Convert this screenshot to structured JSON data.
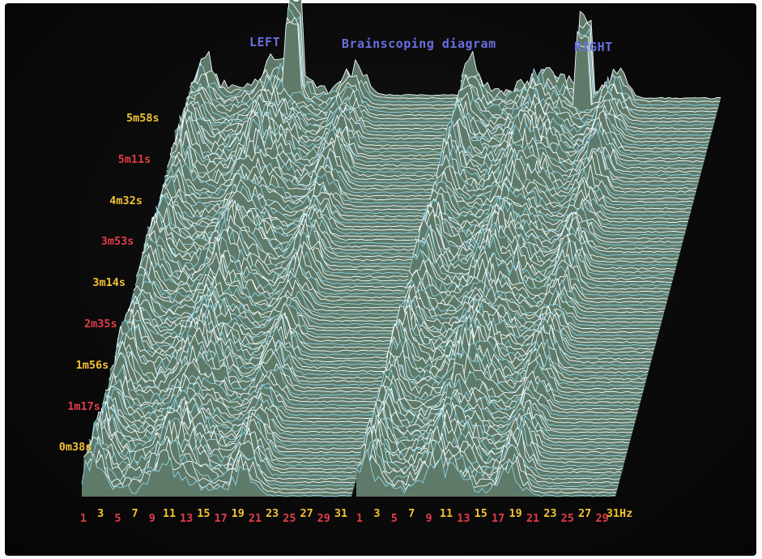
{
  "colors": {
    "screen": "#0a0a0a",
    "plane": "#5f7a68",
    "line_bright": "#f2fbff",
    "line_cyan": "#8fd6ec",
    "label_yellow": "#f2c232",
    "label_red": "#e23c48",
    "title_blue": "#6a6ee0"
  },
  "header": {
    "left": "LEFT",
    "title": "Brainscoping diagram",
    "right": "RIGHT"
  },
  "chart_data": {
    "type": "waterfall",
    "panels": [
      "LEFT",
      "RIGHT"
    ],
    "time_labels": [
      {
        "text": "5m58s",
        "color": "yellow"
      },
      {
        "text": "5m11s",
        "color": "red"
      },
      {
        "text": "4m32s",
        "color": "yellow"
      },
      {
        "text": "3m53s",
        "color": "red"
      },
      {
        "text": "3m14s",
        "color": "yellow"
      },
      {
        "text": "2m35s",
        "color": "red"
      },
      {
        "text": "1m56s",
        "color": "yellow"
      },
      {
        "text": "1m17s",
        "color": "red"
      },
      {
        "text": "0m38s",
        "color": "yellow"
      }
    ],
    "freq_labels_left": [
      "1",
      "3",
      "5",
      "7",
      "9",
      "11",
      "13",
      "15",
      "17",
      "19",
      "21",
      "23",
      "25",
      "27",
      "29",
      "31"
    ],
    "freq_labels_right": [
      "1",
      "3",
      "5",
      "7",
      "9",
      "11",
      "13",
      "15",
      "17",
      "19",
      "21",
      "23",
      "25",
      "27",
      "29",
      "31Hz"
    ],
    "x_range_hz": [
      1,
      31
    ],
    "time_range_s": [
      0,
      358
    ],
    "n_trace_lines": 120,
    "dominant_peaks_hz": [
      3,
      11,
      13,
      19
    ],
    "noise_floor_above_hz": 21
  }
}
